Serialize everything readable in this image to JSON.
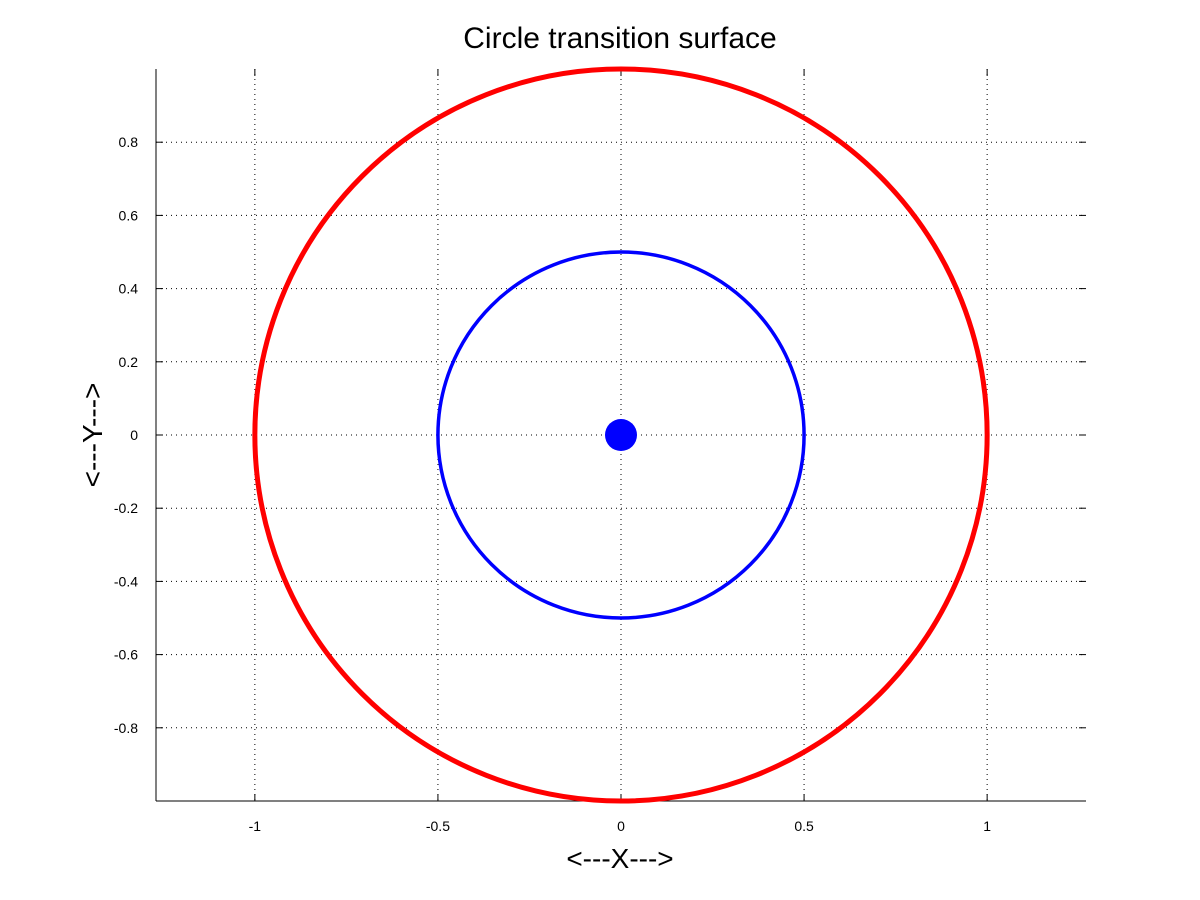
{
  "chart_data": {
    "type": "line",
    "title": "Circle transition surface",
    "xlabel": "<---X--->",
    "ylabel": "<---Y--->",
    "xlim": [
      -1.27,
      1.27
    ],
    "ylim": [
      -1,
      1
    ],
    "x_ticks": [
      -1,
      -0.5,
      0,
      0.5,
      1
    ],
    "x_tick_labels": [
      "-1",
      "-0.5",
      "0",
      "0.5",
      "1"
    ],
    "y_ticks": [
      -0.8,
      -0.6,
      -0.4,
      -0.2,
      0,
      0.2,
      0.4,
      0.6,
      0.8
    ],
    "y_tick_labels": [
      "-0.8",
      "-0.6",
      "-0.4",
      "-0.2",
      "0",
      "0.2",
      "0.4",
      "0.6",
      "0.8"
    ],
    "grid": true,
    "series": [
      {
        "kind": "circle",
        "center": [
          0,
          0
        ],
        "radius": 1.0,
        "color": "#ff0000",
        "line_width": "thick"
      },
      {
        "kind": "circle",
        "center": [
          0,
          0
        ],
        "radius": 0.5,
        "color": "#0000ff",
        "line_width": "medium"
      },
      {
        "kind": "point",
        "x": 0,
        "y": 0,
        "color": "#0000ff",
        "marker": "filled-circle"
      }
    ]
  }
}
